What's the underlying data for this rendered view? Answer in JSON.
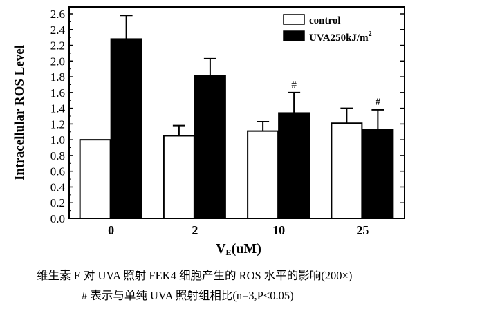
{
  "chart_data": {
    "type": "bar",
    "categories": [
      "0",
      "2",
      "10",
      "25"
    ],
    "series": [
      {
        "name": "control",
        "color": "#ffffff",
        "values": [
          1.0,
          1.05,
          1.11,
          1.21
        ],
        "errors": [
          0,
          0.13,
          0.12,
          0.19
        ]
      },
      {
        "name": "UVA250kJ/m",
        "color": "#000000",
        "values": [
          2.28,
          1.81,
          1.34,
          1.13
        ],
        "errors": [
          0.3,
          0.22,
          0.26,
          0.25
        ]
      }
    ],
    "legend_superscript": "2",
    "annotations": [
      {
        "category": "10",
        "series": "UVA250kJ/m",
        "text": "#"
      },
      {
        "category": "25",
        "series": "UVA250kJ/m",
        "text": "#"
      }
    ],
    "ylabel": "Intracellular  ROS Level",
    "xlabel": {
      "main": "V",
      "subscript": "E",
      "suffix": "(uM)"
    },
    "ylim": [
      0,
      2.6
    ],
    "yticks": [
      "0.0",
      "0.2",
      "0.4",
      "0.6",
      "0.8",
      "1.0",
      "1.2",
      "1.4",
      "1.6",
      "1.8",
      "2.0",
      "2.2",
      "2.4",
      "2.6"
    ],
    "legend_position": "top-right"
  },
  "caption": {
    "line1": "维生素 E 对 UVA 照射 FEK4 细胞产生的 ROS 水平的影响(200×)",
    "line2": "#  表示与单纯 UVA 照射组相比(n=3,P<0.05)"
  }
}
